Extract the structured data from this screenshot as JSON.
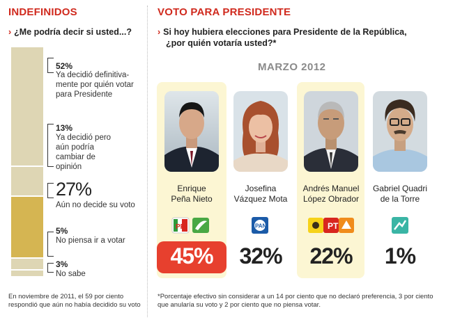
{
  "left": {
    "title": "INDEFINIDOS",
    "question": "¿Me podría decir si usted...?",
    "items": [
      {
        "pct": "52%",
        "text": "Ya decidió definitiva- mente por quién votar para Presidente",
        "value": 52
      },
      {
        "pct": "13%",
        "text": "Ya decidió pero aún podría cambiar de opinión",
        "value": 13
      },
      {
        "pct": "27%",
        "text": "Aún no decide su voto",
        "value": 27
      },
      {
        "pct": "5%",
        "text": "No piensa ir a votar",
        "value": 5
      },
      {
        "pct": "3%",
        "text": "No sabe",
        "value": 3
      }
    ],
    "footnote": "En noviembre de 2011, el 59 por ciento respondió que aún no había decidido su voto"
  },
  "right": {
    "title": "VOTO PARA PRESIDENTE",
    "question_line1": "Si hoy hubiera elecciones para Presidente de la República,",
    "question_line2": "¿por quién votaría usted?*",
    "month": "MARZO 2012",
    "footnote_line1": "*Porcentaje efectivo sin considerar a un 14 por ciento que no declaró preferencia, 3 por ciento",
    "footnote_line2": "que anularía su voto y 2 por ciento que no piensa votar."
  },
  "chart_data": [
    {
      "type": "bar",
      "title": "INDEFINIDOS",
      "categories": [
        "Ya decidió definitivamente por quién votar para Presidente",
        "Ya decidió pero aún podría cambiar de opinión",
        "Aún no decide su voto",
        "No piensa ir a votar",
        "No sabe"
      ],
      "values": [
        52,
        13,
        27,
        5,
        3
      ]
    },
    {
      "type": "bar",
      "title": "VOTO PARA PRESIDENTE",
      "categories": [
        "Enrique Peña Nieto",
        "Josefina Vázquez Mota",
        "Andrés Manuel López Obrador",
        "Gabriel Quadri de la Torre"
      ],
      "values": [
        45,
        32,
        22,
        1
      ]
    }
  ],
  "candidates": [
    {
      "name1": "Enrique",
      "name2": "Peña Nieto",
      "vote": "45%",
      "party_icon": "pri-pvem-logos",
      "highlight": true
    },
    {
      "name1": "Josefina",
      "name2": "Vázquez Mota",
      "vote": "32%",
      "party_icon": "pan-logo",
      "highlight": false
    },
    {
      "name1": "Andrés Manuel",
      "name2": "López Obrador",
      "vote": "22%",
      "party_icon": "prd-pt-mc-logos",
      "highlight": true
    },
    {
      "name1": "Gabriel Quadri",
      "name2": "de la Torre",
      "vote": "1%",
      "party_icon": "panal-logo",
      "highlight": false
    }
  ],
  "colors": {
    "accent": "#d02a1e",
    "stack_light": "#ded6b4",
    "stack_gold": "#d5b552",
    "card": "#fcf6d3",
    "vote_box": "#e7402e"
  }
}
